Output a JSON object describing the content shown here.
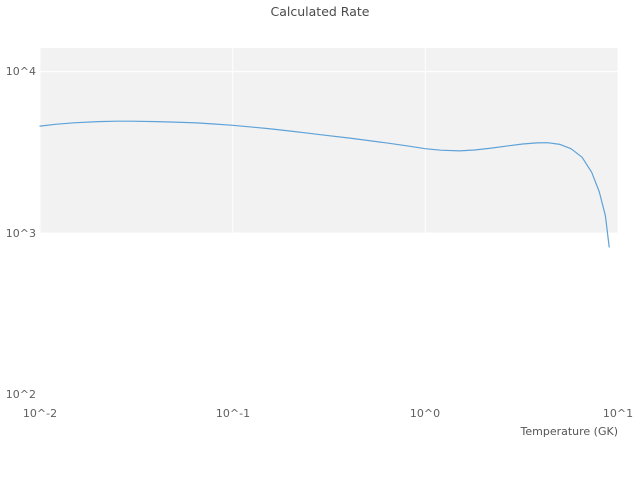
{
  "chart_data": {
    "type": "line",
    "title": "Calculated Rate",
    "xlabel": "Temperature (GK)",
    "ylabel": "",
    "xscale": "log",
    "yscale": "log",
    "xlim": [
      0.01,
      10
    ],
    "ylim": [
      90,
      14000
    ],
    "legend": "none",
    "grid": "white gridlines visible over shaded band",
    "band": {
      "y_from": 1000,
      "y_to": 14000,
      "color": "#f2f2f2"
    },
    "xticks": {
      "values": [
        0.01,
        0.1,
        1,
        10
      ],
      "labels": [
        "10^-2",
        "10^-1",
        "10^0",
        "10^1"
      ]
    },
    "yticks": {
      "values": [
        100,
        1000,
        10000
      ],
      "labels": [
        "10^2",
        "10^3",
        "10^4"
      ]
    },
    "series": [
      {
        "name": "calculated-rate",
        "color": "#5fa2d8",
        "line_width": 1.2,
        "points": [
          [
            0.01,
            4600
          ],
          [
            0.012,
            4720
          ],
          [
            0.015,
            4820
          ],
          [
            0.02,
            4900
          ],
          [
            0.025,
            4930
          ],
          [
            0.03,
            4930
          ],
          [
            0.04,
            4900
          ],
          [
            0.05,
            4870
          ],
          [
            0.065,
            4810
          ],
          [
            0.08,
            4740
          ],
          [
            0.1,
            4650
          ],
          [
            0.13,
            4520
          ],
          [
            0.16,
            4410
          ],
          [
            0.2,
            4280
          ],
          [
            0.25,
            4150
          ],
          [
            0.3,
            4040
          ],
          [
            0.4,
            3880
          ],
          [
            0.5,
            3750
          ],
          [
            0.65,
            3600
          ],
          [
            0.8,
            3470
          ],
          [
            1.0,
            3330
          ],
          [
            1.2,
            3260
          ],
          [
            1.5,
            3230
          ],
          [
            1.8,
            3270
          ],
          [
            2.2,
            3360
          ],
          [
            2.7,
            3470
          ],
          [
            3.2,
            3560
          ],
          [
            3.8,
            3620
          ],
          [
            4.3,
            3630
          ],
          [
            5.0,
            3540
          ],
          [
            5.7,
            3330
          ],
          [
            6.5,
            2950
          ],
          [
            7.3,
            2380
          ],
          [
            8.0,
            1800
          ],
          [
            8.6,
            1280
          ],
          [
            9.0,
            820
          ]
        ]
      }
    ]
  }
}
